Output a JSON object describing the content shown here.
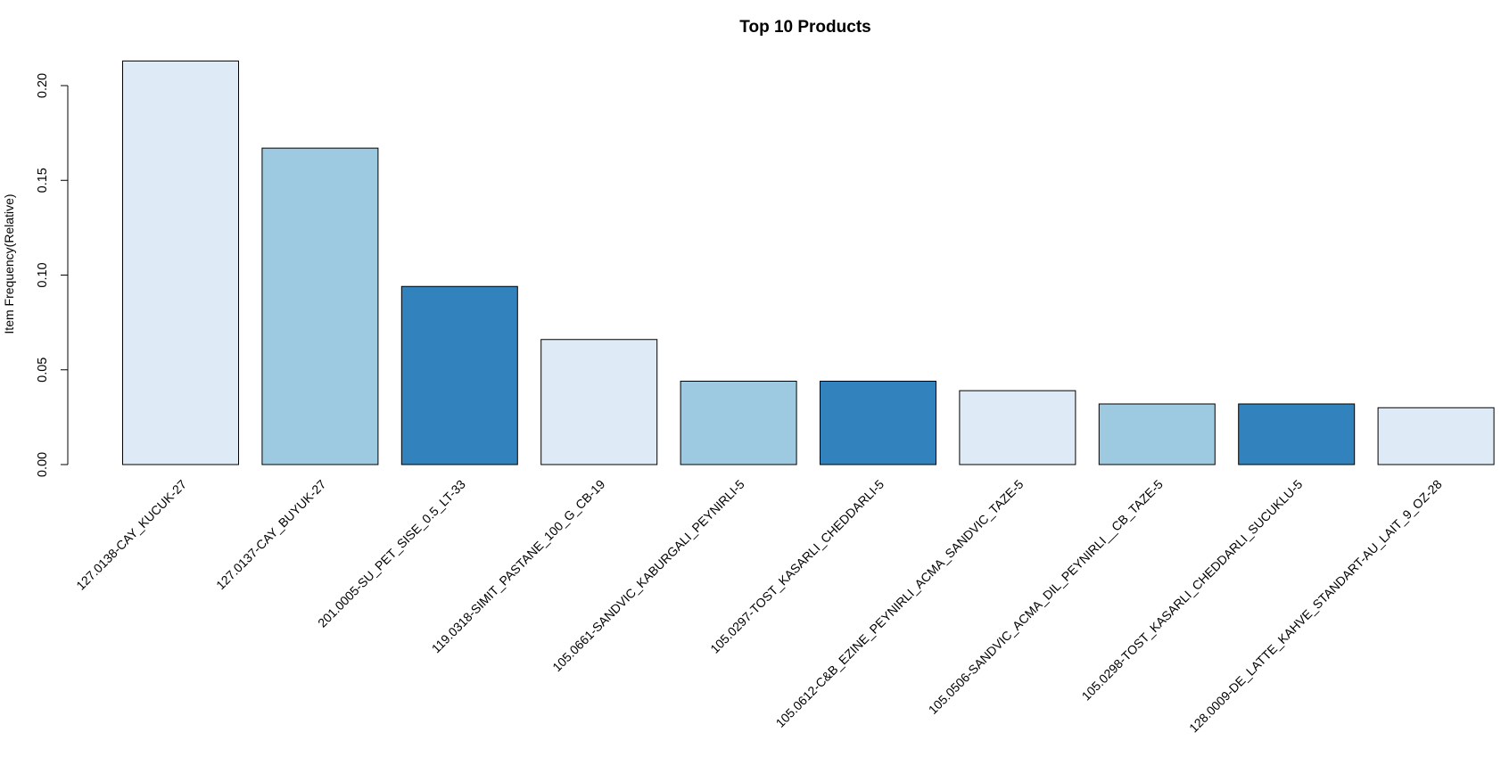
{
  "chart_data": {
    "type": "bar",
    "title": "Top 10 Products",
    "xlabel": "",
    "ylabel": "Item Frequency(Relative)",
    "ylim": [
      0,
      0.2
    ],
    "yticks": [
      "0.00",
      "0.05",
      "0.10",
      "0.15",
      "0.20"
    ],
    "grid": false,
    "categories": [
      "127.0138-CAY_KUCUK-27",
      "127.0137-CAY_BUYUK-27",
      "201.0005-SU_PET_SISE_0.5_LT-33",
      "119.0318-SIMIT_PASTANE_100_G_CB-19",
      "105.0661-SANDVIC_KABURGALI_PEYNIRLI-5",
      "105.0297-TOST_KASARLI_CHEDDARLI-5",
      "105.0612-C&B_EZINE_PEYNIRLI_ACMA_SANDVIC_TAZE-5",
      "105.0506-SANDVIC_ACMA_DIL_PEYNIRLI__CB_TAZE-5",
      "105.0298-TOST_KASARLI_CHEDDARLI_SUCUKLU-5",
      "128.0009-DE_LATTE_KAHVE_STANDART-AU_LAIT_9_OZ-28"
    ],
    "values": [
      0.213,
      0.167,
      0.094,
      0.066,
      0.044,
      0.044,
      0.039,
      0.032,
      0.032,
      0.03
    ],
    "colors": [
      "#DEEBF7",
      "#9ECAE1",
      "#3182BD",
      "#DEEBF7",
      "#9ECAE1",
      "#3182BD",
      "#DEEBF7",
      "#9ECAE1",
      "#3182BD",
      "#DEEBF7"
    ]
  }
}
